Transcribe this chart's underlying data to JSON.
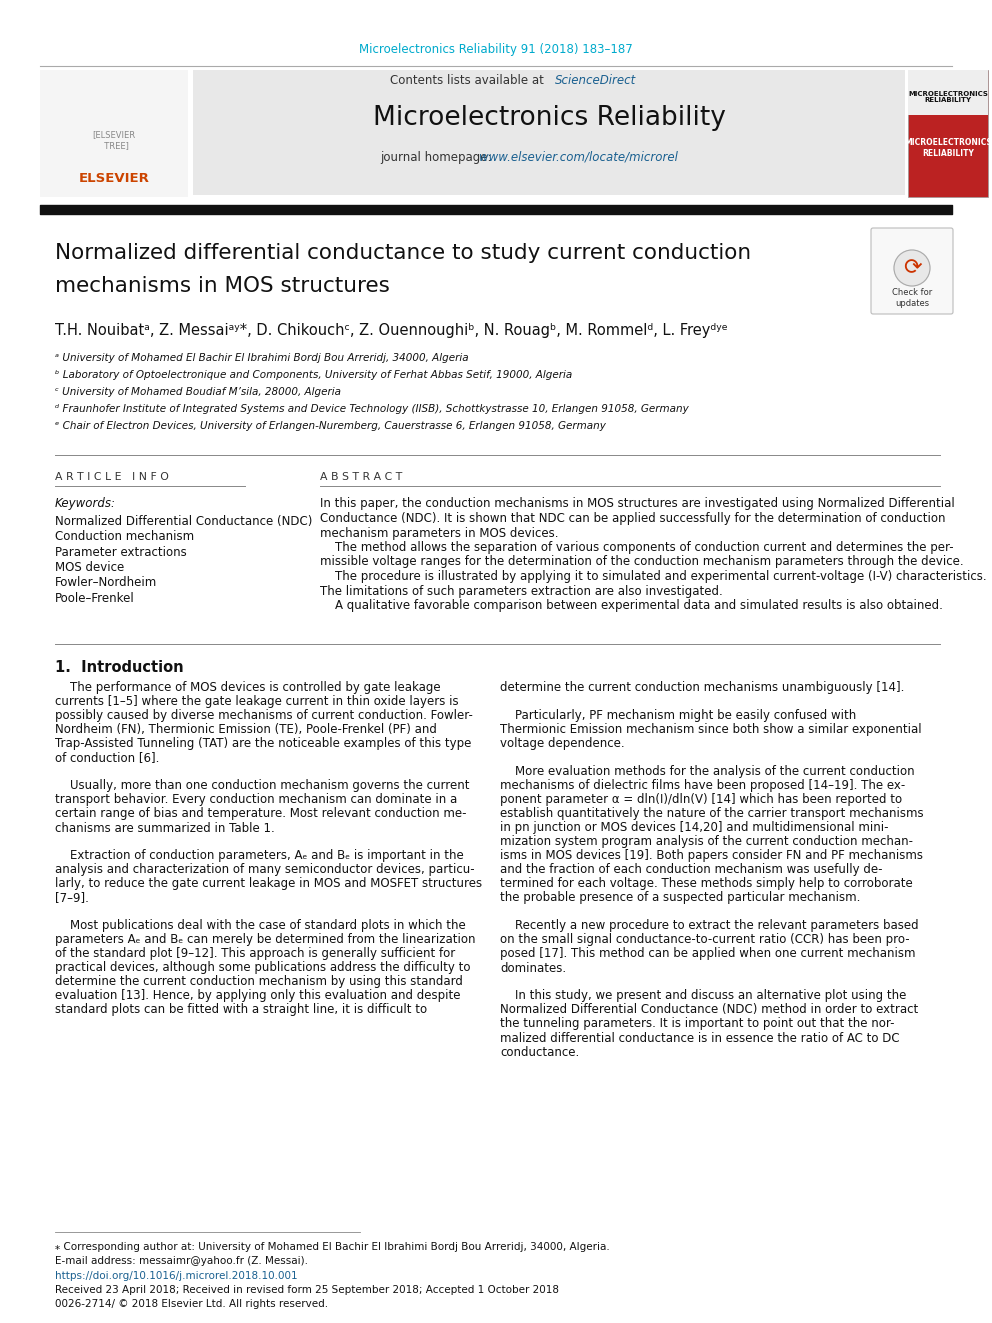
{
  "journal_ref": "Microelectronics Reliability 91 (2018) 183–187",
  "journal_name": "Microelectronics Reliability",
  "contents_text": "Contents lists available at",
  "sciencedirect": "ScienceDirect",
  "journal_homepage_label": "journal homepage:",
  "journal_url": "www.elsevier.com/locate/microrel",
  "title_line1": "Normalized differential conductance to study current conduction",
  "title_line2": "mechanisms in MOS structures",
  "authors_plain": "T.H. Nouibatᵃ, Z. Messaiᵃʸ*, D. Chikouchᶜ, Z. Ouennoughiᵇ, N. Rouagᵇ, M. Rommelᵈ, L. Freyᵈʸᵉ",
  "affil_a": "ᵃ University of Mohamed El Bachir El Ibrahimi Bordj Bou Arreridj, 34000, Algeria",
  "affil_b": "ᵇ Laboratory of Optoelectronique and Components, University of Ferhat Abbas Setif, 19000, Algeria",
  "affil_c": "ᶜ University of Mohamed Boudiaf M’sila, 28000, Algeria",
  "affil_d": "ᵈ Fraunhofer Institute of Integrated Systems and Device Technology (IISB), Schottkystrasse 10, Erlangen 91058, Germany",
  "affil_e": "ᵉ Chair of Electron Devices, University of Erlangen-Nuremberg, Cauerstrasse 6, Erlangen 91058, Germany",
  "article_info_title": "A R T I C L E   I N F O",
  "abstract_title": "A B S T R A C T",
  "keywords_label": "Keywords:",
  "keywords": [
    "Normalized Differential Conductance (NDC)",
    "Conduction mechanism",
    "Parameter extractions",
    "MOS device",
    "Fowler–Nordheim",
    "Poole–Frenkel"
  ],
  "abstract_lines": [
    "In this paper, the conduction mechanisms in MOS structures are investigated using Normalized Differential",
    "Conductance (NDC). It is shown that NDC can be applied successfully for the determination of conduction",
    "mechanism parameters in MOS devices.",
    "    The method allows the separation of various components of conduction current and determines the per-",
    "missible voltage ranges for the determination of the conduction mechanism parameters through the device.",
    "    The procedure is illustrated by applying it to simulated and experimental current-voltage (I-V) characteristics.",
    "The limitations of such parameters extraction are also investigated.",
    "    A qualitative favorable comparison between experimental data and simulated results is also obtained."
  ],
  "intro_title": "1.  Introduction",
  "left_paras": [
    "    The performance of MOS devices is controlled by gate leakage",
    "currents [1–5] where the gate leakage current in thin oxide layers is",
    "possibly caused by diverse mechanisms of current conduction. Fowler-",
    "Nordheim (FN), Thermionic Emission (TE), Poole-Frenkel (PF) and",
    "Trap-Assisted Tunneling (TAT) are the noticeable examples of this type",
    "of conduction [6].",
    "",
    "    Usually, more than one conduction mechanism governs the current",
    "transport behavior. Every conduction mechanism can dominate in a",
    "certain range of bias and temperature. Most relevant conduction me-",
    "chanisms are summarized in Table 1.",
    "",
    "    Extraction of conduction parameters, Aₑ and Bₑ is important in the",
    "analysis and characterization of many semiconductor devices, particu-",
    "larly, to reduce the gate current leakage in MOS and MOSFET structures",
    "[7–9].",
    "",
    "    Most publications deal with the case of standard plots in which the",
    "parameters Aₑ and Bₑ can merely be determined from the linearization",
    "of the standard plot [9–12]. This approach is generally sufficient for",
    "practical devices, although some publications address the difficulty to",
    "determine the current conduction mechanism by using this standard",
    "evaluation [13]. Hence, by applying only this evaluation and despite",
    "standard plots can be fitted with a straight line, it is difficult to"
  ],
  "right_paras": [
    "determine the current conduction mechanisms unambiguously [14].",
    "",
    "    Particularly, PF mechanism might be easily confused with",
    "Thermionic Emission mechanism since both show a similar exponential",
    "voltage dependence.",
    "",
    "    More evaluation methods for the analysis of the current conduction",
    "mechanisms of dielectric films have been proposed [14–19]. The ex-",
    "ponent parameter α = dln(I)/dln(V) [14] which has been reported to",
    "establish quantitatively the nature of the carrier transport mechanisms",
    "in pn junction or MOS devices [14,20] and multidimensional mini-",
    "mization system program analysis of the current conduction mechan-",
    "isms in MOS devices [19]. Both papers consider FN and PF mechanisms",
    "and the fraction of each conduction mechanism was usefully de-",
    "termined for each voltage. These methods simply help to corroborate",
    "the probable presence of a suspected particular mechanism.",
    "",
    "    Recently a new procedure to extract the relevant parameters based",
    "on the small signal conductance-to-current ratio (CCR) has been pro-",
    "posed [17]. This method can be applied when one current mechanism",
    "dominates.",
    "",
    "    In this study, we present and discuss an alternative plot using the",
    "Normalized Differential Conductance (NDC) method in order to extract",
    "the tunneling parameters. It is important to point out that the nor-",
    "malized differential conductance is in essence the ratio of AC to DC",
    "conductance."
  ],
  "footnote_star": "⁎ Corresponding author at: University of Mohamed El Bachir El Ibrahimi Bordj Bou Arreridj, 34000, Algeria.",
  "footnote_email": "E-mail address: messaimr@yahoo.fr (Z. Messai).",
  "footnote_doi": "https://doi.org/10.1016/j.microrel.2018.10.001",
  "footnote_received": "Received 23 April 2018; Received in revised form 25 September 2018; Accepted 1 October 2018",
  "footnote_copyright": "0026-2714/ © 2018 Elsevier Ltd. All rights reserved.",
  "color_cyan": "#00AACC",
  "color_link": "#1a6090",
  "color_black": "#111111",
  "bg_header": "#e8e8e8",
  "bg_white": "#ffffff"
}
